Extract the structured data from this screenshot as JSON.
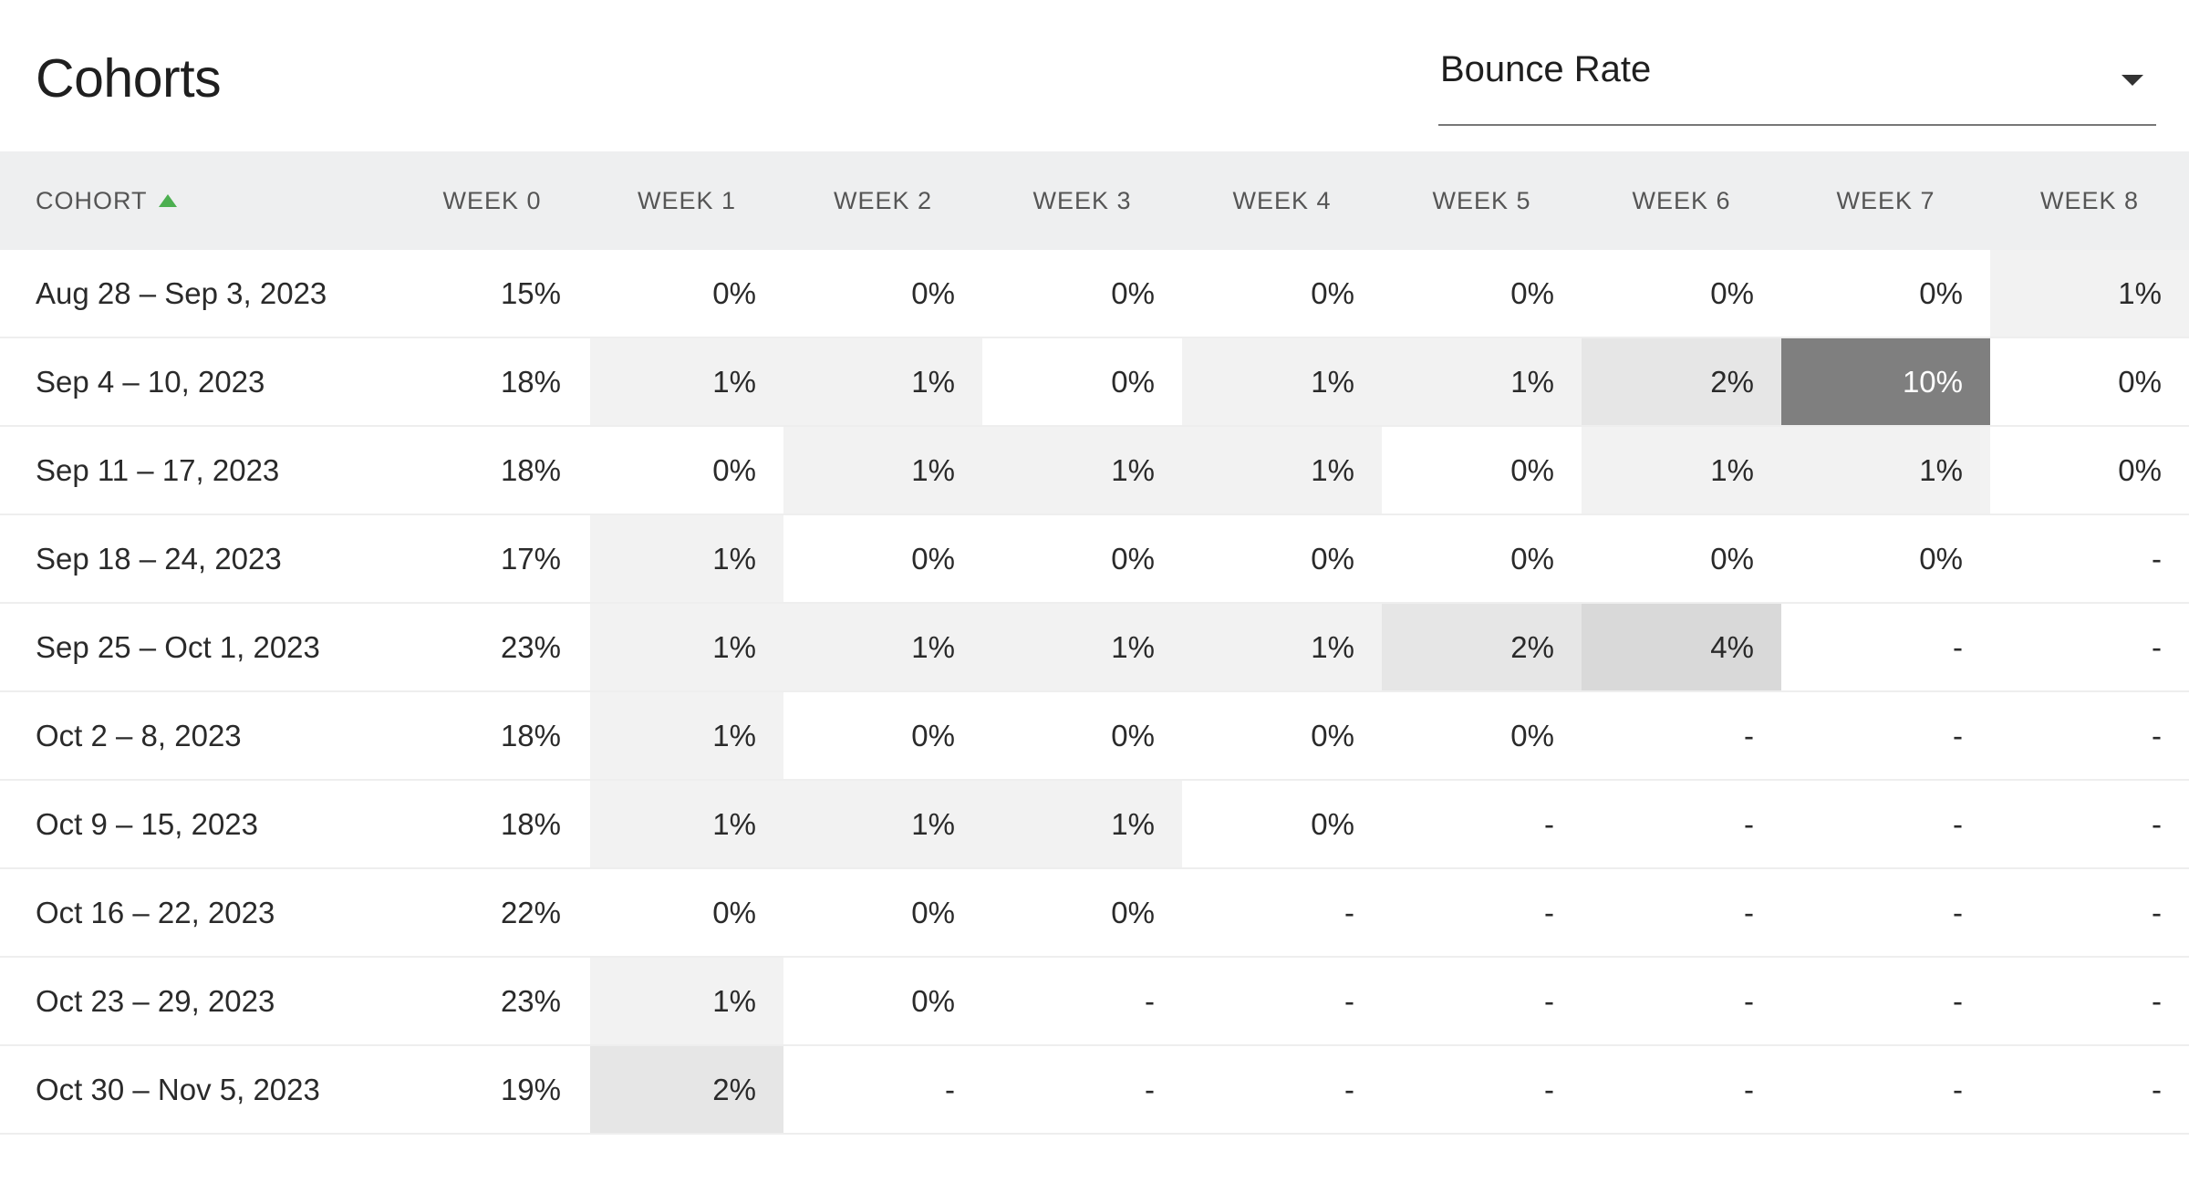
{
  "title": "Cohorts",
  "metric_select": {
    "value": "Bounce Rate"
  },
  "table": {
    "headers": [
      "COHORT",
      "WEEK 0",
      "WEEK 1",
      "WEEK 2",
      "WEEK 3",
      "WEEK 4",
      "WEEK 5",
      "WEEK 6",
      "WEEK 7",
      "WEEK 8"
    ],
    "rows": [
      {
        "cohort": "Aug 28 – Sep 3, 2023",
        "values": [
          "15%",
          "0%",
          "0%",
          "0%",
          "0%",
          "0%",
          "0%",
          "0%",
          "1%"
        ]
      },
      {
        "cohort": "Sep 4 – 10, 2023",
        "values": [
          "18%",
          "1%",
          "1%",
          "0%",
          "1%",
          "1%",
          "2%",
          "10%",
          "0%"
        ]
      },
      {
        "cohort": "Sep 11 – 17, 2023",
        "values": [
          "18%",
          "0%",
          "1%",
          "1%",
          "1%",
          "0%",
          "1%",
          "1%",
          "0%"
        ]
      },
      {
        "cohort": "Sep 18 – 24, 2023",
        "values": [
          "17%",
          "1%",
          "0%",
          "0%",
          "0%",
          "0%",
          "0%",
          "0%",
          "-"
        ]
      },
      {
        "cohort": "Sep 25 – Oct 1, 2023",
        "values": [
          "23%",
          "1%",
          "1%",
          "1%",
          "1%",
          "2%",
          "4%",
          "-",
          "-"
        ]
      },
      {
        "cohort": "Oct 2 – 8, 2023",
        "values": [
          "18%",
          "1%",
          "0%",
          "0%",
          "0%",
          "0%",
          "-",
          "-",
          "-"
        ]
      },
      {
        "cohort": "Oct 9 – 15, 2023",
        "values": [
          "18%",
          "1%",
          "1%",
          "1%",
          "0%",
          "-",
          "-",
          "-",
          "-"
        ]
      },
      {
        "cohort": "Oct 16 – 22, 2023",
        "values": [
          "22%",
          "0%",
          "0%",
          "0%",
          "-",
          "-",
          "-",
          "-",
          "-"
        ]
      },
      {
        "cohort": "Oct 23 – 29, 2023",
        "values": [
          "23%",
          "1%",
          "0%",
          "-",
          "-",
          "-",
          "-",
          "-",
          "-"
        ]
      },
      {
        "cohort": "Oct 30 – Nov 5, 2023",
        "values": [
          "19%",
          "2%",
          "-",
          "-",
          "-",
          "-",
          "-",
          "-",
          "-"
        ]
      }
    ],
    "cell_shades": [
      [
        "none",
        "none",
        "none",
        "none",
        "none",
        "none",
        "none",
        "none",
        "light"
      ],
      [
        "none",
        "light",
        "light",
        "none",
        "light",
        "light",
        "mid",
        "dark",
        "none"
      ],
      [
        "none",
        "none",
        "light",
        "light",
        "light",
        "none",
        "light",
        "light",
        "none"
      ],
      [
        "none",
        "light",
        "none",
        "none",
        "none",
        "none",
        "none",
        "none",
        "none"
      ],
      [
        "none",
        "light",
        "light",
        "light",
        "light",
        "mid",
        "midstrong",
        "none",
        "none"
      ],
      [
        "none",
        "light",
        "none",
        "none",
        "none",
        "none",
        "none",
        "none",
        "none"
      ],
      [
        "none",
        "light",
        "light",
        "light",
        "none",
        "none",
        "none",
        "none",
        "none"
      ],
      [
        "none",
        "none",
        "none",
        "none",
        "none",
        "none",
        "none",
        "none",
        "none"
      ],
      [
        "none",
        "light",
        "none",
        "none",
        "none",
        "none",
        "none",
        "none",
        "none"
      ],
      [
        "none",
        "mid",
        "none",
        "none",
        "none",
        "none",
        "none",
        "none",
        "none"
      ]
    ],
    "shade_colors": {
      "none": "#ffffff",
      "light": "#f2f2f2",
      "mid": "#e6e6e6",
      "midstrong": "#d9d9d9",
      "dark": "#7f7f7f"
    },
    "sort": {
      "column": "COHORT",
      "direction": "ascending",
      "indicator_color": "#4caf50"
    }
  }
}
